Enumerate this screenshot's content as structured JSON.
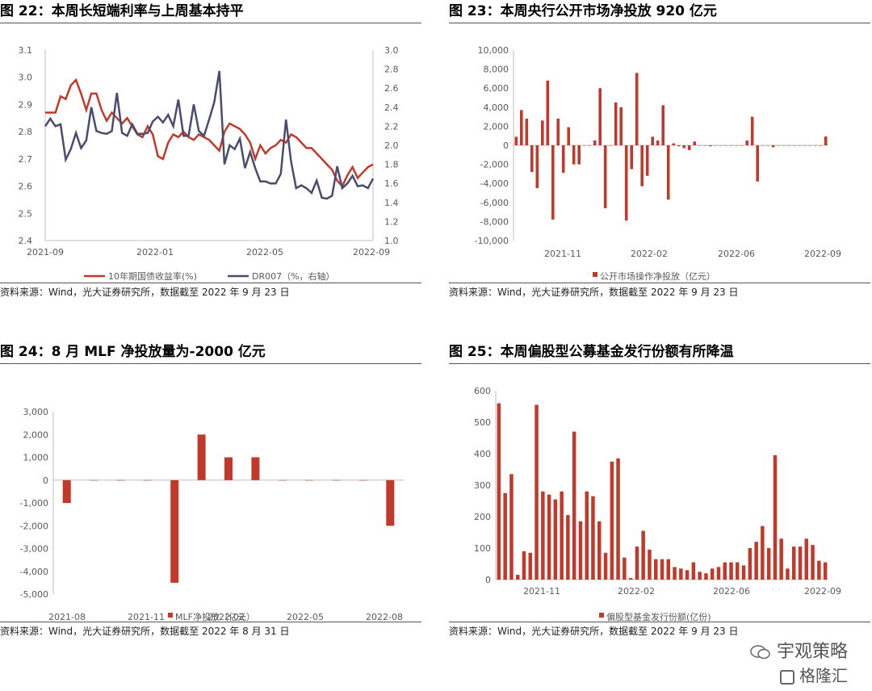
{
  "colors": {
    "red": "#c0392b",
    "navy": "#4b4b6e",
    "axis": "#bfbfbf",
    "text": "#595959"
  },
  "panels": [
    {
      "title": "图 22：本周长短端利率与上周基本持平",
      "source": "资料来源：Wind，光大证券研究所，数据截至 2022 年 9 月 23 日"
    },
    {
      "title": "图 23：本周央行公开市场净投放 920 亿元",
      "source": "资料来源：Wind，光大证券研究所，数据截至 2022 年 9 月 23 日"
    },
    {
      "title": "图 24：8 月 MLF 净投放量为-2000 亿元",
      "source": "资料来源：Wind，光大证券研究所，数据截至 2022 年 8 月 31 日"
    },
    {
      "title": "图 25：本周偏股型公募基金发行份额有所降温",
      "source": "资料来源：Wind，光大证券研究所，数据截至 2022 年 9 月 23 日"
    }
  ],
  "watermark": {
    "line1": "宇观策略",
    "line2": "格隆汇"
  },
  "chart_data": [
    {
      "type": "line",
      "ylim": [
        2.4,
        3.1
      ],
      "ylim_right": [
        1.0,
        3.0
      ],
      "yticks": [
        "2.4",
        "2.5",
        "2.6",
        "2.7",
        "2.8",
        "2.9",
        "3.0",
        "3.1"
      ],
      "yticks_right": [
        "1.0",
        "1.2",
        "1.4",
        "1.6",
        "1.8",
        "2.0",
        "2.2",
        "2.4",
        "2.6",
        "2.8",
        "3.0"
      ],
      "xticks": [
        "2021-09",
        "2022-01",
        "2022-05",
        "2022-09"
      ],
      "series": [
        {
          "name": "10年期国债收益率(%)",
          "axis": "left",
          "values": [
            2.87,
            2.87,
            2.87,
            2.93,
            2.92,
            2.97,
            2.99,
            2.94,
            2.88,
            2.94,
            2.94,
            2.88,
            2.84,
            2.87,
            2.85,
            2.83,
            2.85,
            2.82,
            2.79,
            2.78,
            2.82,
            2.79,
            2.71,
            2.7,
            2.76,
            2.79,
            2.78,
            2.8,
            2.78,
            2.77,
            2.79,
            2.78,
            2.77,
            2.75,
            2.73,
            2.8,
            2.83,
            2.82,
            2.81,
            2.79,
            2.76,
            2.7,
            2.75,
            2.72,
            2.74,
            2.75,
            2.77,
            2.76,
            2.79,
            2.78,
            2.76,
            2.74,
            2.74,
            2.72,
            2.7,
            2.68,
            2.66,
            2.62,
            2.6,
            2.64,
            2.67,
            2.63,
            2.65,
            2.67,
            2.68
          ]
        },
        {
          "name": "DR007（%，右轴）",
          "axis": "right",
          "values": [
            2.2,
            2.28,
            2.2,
            2.22,
            1.85,
            1.96,
            2.13,
            1.97,
            2.05,
            2.4,
            2.15,
            2.13,
            2.12,
            2.15,
            2.55,
            2.13,
            2.1,
            2.22,
            2.12,
            2.12,
            2.13,
            2.25,
            2.3,
            2.24,
            2.32,
            2.2,
            2.48,
            2.1,
            2.1,
            2.43,
            2.15,
            2.1,
            2.27,
            2.45,
            2.78,
            1.8,
            2.0,
            1.96,
            2.07,
            1.76,
            1.93,
            1.76,
            1.62,
            1.62,
            1.6,
            1.6,
            1.7,
            2.27,
            1.83,
            1.55,
            1.58,
            1.55,
            1.5,
            1.63,
            1.45,
            1.44,
            1.47,
            1.78,
            1.55,
            1.6,
            1.68,
            1.57,
            1.58,
            1.55,
            1.65
          ]
        }
      ]
    },
    {
      "type": "bar",
      "ylim": [
        -10000,
        10000
      ],
      "yticks": [
        "-10,000",
        "-8,000",
        "-6,000",
        "-4,000",
        "-2,000",
        "0",
        "2,000",
        "4,000",
        "6,000",
        "8,000",
        "10,000"
      ],
      "xticks": [
        "2021-11",
        "2022-02",
        "2022-06",
        "2022-09"
      ],
      "series": [
        {
          "name": "公开市场操作净投放（亿元）",
          "values": [
            900,
            3700,
            2800,
            -2800,
            -4500,
            2600,
            6800,
            -7800,
            2800,
            -2900,
            1900,
            -2000,
            -2000,
            0,
            0,
            500,
            6000,
            -6600,
            0,
            4500,
            4000,
            -7900,
            -2500,
            7600,
            -4300,
            -3200,
            900,
            500,
            4200,
            -5700,
            200,
            -100,
            -300,
            -500,
            400,
            0,
            0,
            -100,
            0,
            0,
            0,
            0,
            0,
            0,
            500,
            3000,
            -3800,
            0,
            0,
            -200,
            0,
            0,
            0,
            0,
            0,
            0,
            0,
            0,
            0,
            920
          ]
        }
      ]
    },
    {
      "type": "bar",
      "ylim": [
        -5000,
        3000
      ],
      "yticks": [
        "-5,000",
        "-4,000",
        "-3,000",
        "-2,000",
        "-1,000",
        "0",
        "1,000",
        "2,000",
        "3,000"
      ],
      "xticks": [
        "2021-08",
        "2021-11",
        "2022-02",
        "2022-05",
        "2022-08"
      ],
      "categories": [
        "2021-08",
        "2021-09",
        "2021-10",
        "2021-11",
        "2021-12",
        "2022-01",
        "2022-02",
        "2022-03",
        "2022-04",
        "2022-05",
        "2022-06",
        "2022-07",
        "2022-08"
      ],
      "series": [
        {
          "name": "MLF净投放（亿元）",
          "values": [
            -1000,
            0,
            0,
            0,
            -4500,
            2000,
            1000,
            1000,
            0,
            0,
            0,
            0,
            -2000
          ]
        }
      ]
    },
    {
      "type": "bar",
      "ylim": [
        0,
        600
      ],
      "yticks": [
        "0",
        "100",
        "200",
        "300",
        "400",
        "500",
        "600"
      ],
      "xticks": [
        "2021-11",
        "2022-02",
        "2022-06",
        "2022-09"
      ],
      "series": [
        {
          "name": "偏股型基金发行份额(亿份)",
          "values": [
            560,
            275,
            335,
            15,
            90,
            85,
            555,
            280,
            270,
            255,
            280,
            205,
            470,
            185,
            280,
            265,
            185,
            85,
            375,
            385,
            70,
            5,
            105,
            155,
            95,
            65,
            65,
            65,
            40,
            35,
            30,
            55,
            25,
            20,
            35,
            40,
            55,
            55,
            55,
            45,
            100,
            120,
            170,
            100,
            395,
            130,
            35,
            105,
            105,
            130,
            110,
            60,
            55
          ]
        }
      ]
    }
  ]
}
